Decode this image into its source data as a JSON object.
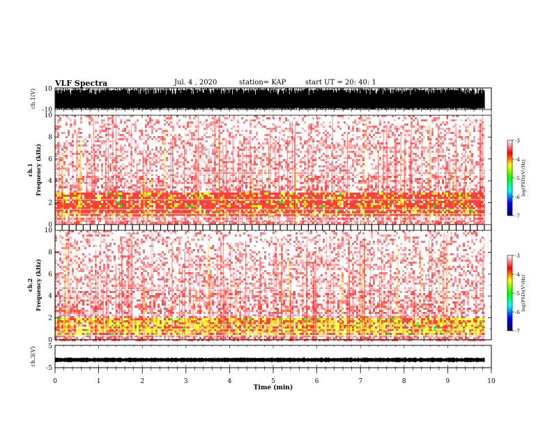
{
  "header": {
    "title": "VLF Spectra",
    "date": "Jul. 4 , 2020",
    "station": "station= KAP",
    "start_ut": "start UT = 20: 40: 1"
  },
  "chart_data": [
    {
      "type": "line",
      "panel": "ch1-waveform",
      "ylabel": "ch.1(V)",
      "ylim": [
        -10,
        10
      ],
      "y_ticks": [
        "10",
        "-10"
      ],
      "description_of_values": "dense saturated waveform spanning most of the range",
      "x_range_min": [
        0,
        9.85
      ]
    },
    {
      "type": "heatmap",
      "panel": "ch1-spectrogram",
      "ylabel": "ch.1\nFrequency (kHz)",
      "ylabel_line1": "ch.1",
      "ylabel_line2": "Frequency (kHz)",
      "ylim": [
        0,
        10
      ],
      "y_ticks": [
        "0",
        "2",
        "4",
        "6",
        "8",
        "10"
      ],
      "colorbar": {
        "label": "log(PSD)(V²/Hz)",
        "range": [
          -7,
          -3
        ],
        "ticks": [
          "-3",
          "-4",
          "-5",
          "-6",
          "-7"
        ],
        "colors": [
          "#000050",
          "#0000ff",
          "#00ffff",
          "#00ff00",
          "#ffff00",
          "#ff0000",
          "#ffffff"
        ]
      },
      "dominant_band_khz": [
        1,
        3
      ]
    },
    {
      "type": "heatmap",
      "panel": "ch2-spectrogram",
      "ylabel_line1": "ch.2",
      "ylabel_line2": "Frequency (kHz)",
      "ylim": [
        0,
        10
      ],
      "y_ticks": [
        "0",
        "2",
        "4",
        "6",
        "8",
        "10"
      ],
      "colorbar": {
        "label": "log(PSD)(V²/Hz)",
        "range": [
          -7,
          -3
        ],
        "ticks": [
          "-3",
          "-4",
          "-5",
          "-6",
          "-7"
        ]
      },
      "dominant_band_khz": [
        0.5,
        2
      ]
    },
    {
      "type": "line",
      "panel": "ch3-waveform",
      "ylabel": "ch.3(V)",
      "ylim": [
        -5,
        5
      ],
      "y_ticks": [
        "5",
        "-5"
      ],
      "level_v": -1.5
    }
  ],
  "xaxis": {
    "label": "Time (min)",
    "ticks": [
      "0",
      "1",
      "2",
      "3",
      "4",
      "5",
      "6",
      "7",
      "8",
      "9",
      "10"
    ],
    "range": [
      0,
      10
    ]
  }
}
